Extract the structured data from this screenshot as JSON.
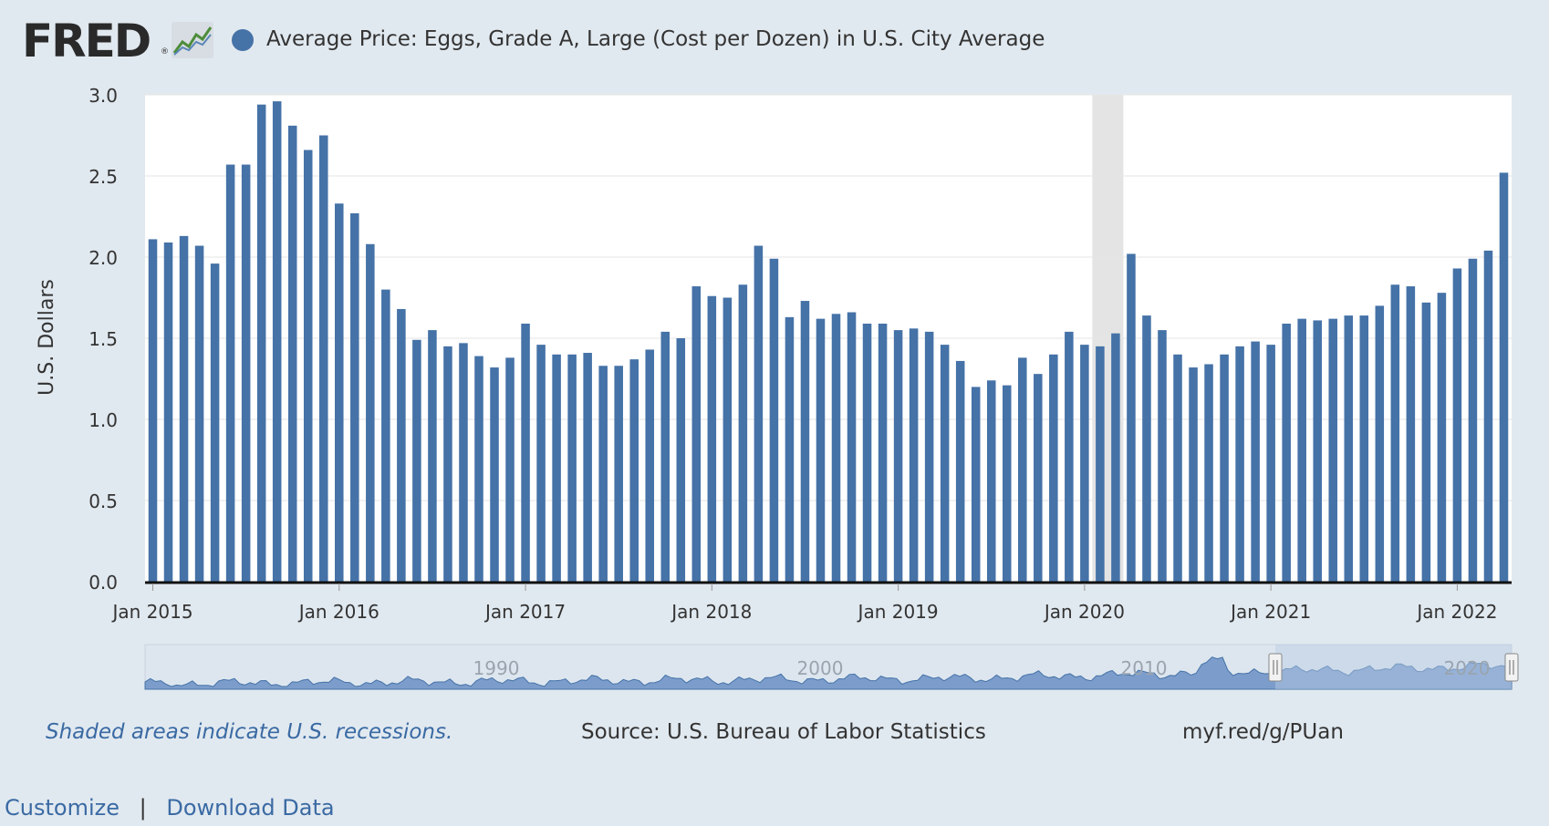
{
  "header": {
    "logo_text": "FRED",
    "logo_reg": "®",
    "series_title": "Average Price: Eggs, Grade A, Large (Cost per Dozen) in U.S. City Average"
  },
  "colors": {
    "bar": "#4572a7",
    "recession": "#e4e4e4",
    "navigator_fill": "#6b8fc4",
    "navigator_mask": "#b9cbe4",
    "background": "#e1e9f0"
  },
  "chart_data": {
    "type": "bar",
    "title": "Average Price: Eggs, Grade A, Large (Cost per Dozen) in U.S. City Average",
    "ylabel": "U.S. Dollars",
    "xlabel": "",
    "ylim": [
      0,
      3.0
    ],
    "yticks": [
      "0.0",
      "0.5",
      "1.0",
      "1.5",
      "2.0",
      "2.5",
      "3.0"
    ],
    "xtick_labels": [
      "Jan 2015",
      "Jan 2016",
      "Jan 2017",
      "Jan 2018",
      "Jan 2019",
      "Jan 2020",
      "Jan 2021",
      "Jan 2022"
    ],
    "start": "2015-01",
    "series": [
      {
        "name": "Average Price: Eggs, Grade A, Large (Cost per Dozen) in U.S. City Average",
        "values": [
          2.11,
          2.09,
          2.13,
          2.07,
          1.96,
          2.57,
          2.57,
          2.94,
          2.96,
          2.81,
          2.66,
          2.75,
          2.33,
          2.27,
          2.08,
          1.8,
          1.68,
          1.49,
          1.55,
          1.45,
          1.47,
          1.39,
          1.32,
          1.38,
          1.59,
          1.46,
          1.4,
          1.4,
          1.41,
          1.33,
          1.33,
          1.37,
          1.43,
          1.54,
          1.5,
          1.82,
          1.76,
          1.75,
          1.83,
          2.07,
          1.99,
          1.63,
          1.73,
          1.62,
          1.65,
          1.66,
          1.59,
          1.59,
          1.55,
          1.56,
          1.54,
          1.46,
          1.36,
          1.2,
          1.24,
          1.21,
          1.38,
          1.28,
          1.4,
          1.54,
          1.46,
          1.45,
          1.53,
          2.02,
          1.64,
          1.55,
          1.4,
          1.32,
          1.34,
          1.4,
          1.45,
          1.48,
          1.46,
          1.59,
          1.62,
          1.61,
          1.62,
          1.64,
          1.64,
          1.7,
          1.83,
          1.82,
          1.72,
          1.78,
          1.93,
          1.99,
          2.04,
          2.52
        ]
      }
    ],
    "recession": {
      "start": "2020-02",
      "end": "2020-04"
    },
    "navigator_labels": [
      "1990",
      "2000",
      "2010",
      "2020"
    ]
  },
  "footer": {
    "recession_note": "Shaded areas indicate U.S. recessions.",
    "source": "Source: U.S. Bureau of Labor Statistics",
    "short_link": "myf.red/g/PUan"
  },
  "links": {
    "customize": "Customize",
    "separator": "|",
    "download": "Download Data"
  }
}
